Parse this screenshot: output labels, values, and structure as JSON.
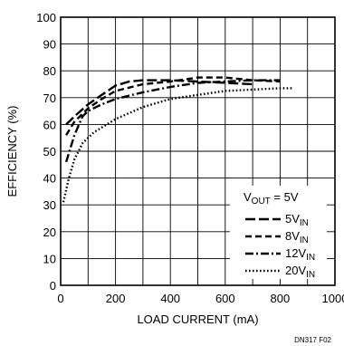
{
  "chart_data": {
    "type": "line",
    "title": "",
    "xlabel": "LOAD CURRENT (mA)",
    "ylabel": "EFFICIENCY (%)",
    "xlim": [
      0,
      1000
    ],
    "ylim": [
      0,
      100
    ],
    "x_ticks": [
      0,
      200,
      400,
      600,
      800,
      1000
    ],
    "y_ticks": [
      0,
      10,
      20,
      30,
      40,
      50,
      60,
      70,
      80,
      90,
      100
    ],
    "grid": true,
    "legend": {
      "title": "VOUT = 5V",
      "title_main": "V",
      "title_sub": "OUT",
      "title_rest": " = 5V",
      "placement": "lower-right"
    },
    "series": [
      {
        "name": "5VIN",
        "label_main": "5V",
        "label_sub": "IN",
        "dash": "long-dash",
        "points": [
          [
            20,
            60
          ],
          [
            50,
            63
          ],
          [
            100,
            67.5
          ],
          [
            150,
            71
          ],
          [
            200,
            74.5
          ],
          [
            250,
            76
          ],
          [
            300,
            76.5
          ],
          [
            400,
            76.5
          ],
          [
            500,
            76
          ],
          [
            600,
            75.5
          ],
          [
            700,
            75
          ]
        ]
      },
      {
        "name": "8VIN",
        "label_main": "8V",
        "label_sub": "IN",
        "dash": "short-dash",
        "points": [
          [
            20,
            56
          ],
          [
            50,
            61
          ],
          [
            100,
            66
          ],
          [
            150,
            69.5
          ],
          [
            200,
            72.5
          ],
          [
            300,
            75
          ],
          [
            400,
            76
          ],
          [
            500,
            77.5
          ],
          [
            600,
            77.5
          ],
          [
            700,
            76.5
          ],
          [
            800,
            76
          ]
        ]
      },
      {
        "name": "12VIN",
        "label_main": "12V",
        "label_sub": "IN",
        "dash": "dash-dot",
        "points": [
          [
            20,
            46
          ],
          [
            50,
            56
          ],
          [
            80,
            63
          ],
          [
            100,
            65
          ],
          [
            150,
            67.5
          ],
          [
            200,
            69.5
          ],
          [
            300,
            72
          ],
          [
            400,
            74
          ],
          [
            500,
            75.5
          ],
          [
            600,
            76
          ],
          [
            700,
            76.5
          ],
          [
            800,
            76.5
          ]
        ]
      },
      {
        "name": "20VIN",
        "label_main": "20V",
        "label_sub": "IN",
        "dash": "dotted",
        "points": [
          [
            10,
            31
          ],
          [
            30,
            40
          ],
          [
            50,
            47
          ],
          [
            80,
            53
          ],
          [
            120,
            57
          ],
          [
            200,
            62
          ],
          [
            300,
            66.5
          ],
          [
            400,
            69.5
          ],
          [
            500,
            71
          ],
          [
            600,
            72.5
          ],
          [
            700,
            73
          ],
          [
            800,
            73.5
          ],
          [
            850,
            73.5
          ]
        ]
      }
    ],
    "figure_id": "DN317 F02"
  }
}
